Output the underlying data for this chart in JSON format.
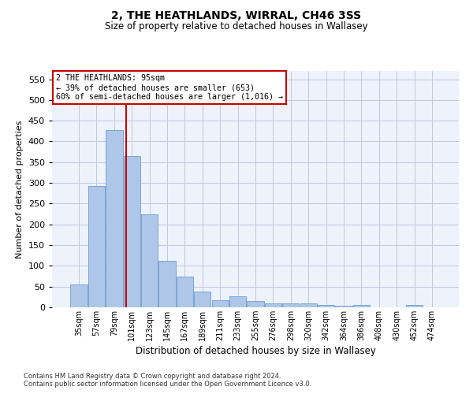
{
  "title": "2, THE HEATHLANDS, WIRRAL, CH46 3SS",
  "subtitle": "Size of property relative to detached houses in Wallasey",
  "xlabel": "Distribution of detached houses by size in Wallasey",
  "ylabel": "Number of detached properties",
  "categories": [
    "35sqm",
    "57sqm",
    "79sqm",
    "101sqm",
    "123sqm",
    "145sqm",
    "167sqm",
    "189sqm",
    "211sqm",
    "233sqm",
    "255sqm",
    "276sqm",
    "298sqm",
    "320sqm",
    "342sqm",
    "364sqm",
    "386sqm",
    "408sqm",
    "430sqm",
    "452sqm",
    "474sqm"
  ],
  "values": [
    56,
    293,
    428,
    365,
    225,
    113,
    75,
    38,
    17,
    27,
    15,
    10,
    10,
    10,
    5,
    3,
    5,
    0,
    0,
    5,
    0
  ],
  "bar_color": "#aec6e8",
  "bar_edge_color": "#6a9fd0",
  "annotation_text_line1": "2 THE HEATHLANDS: 95sqm",
  "annotation_text_line2": "← 39% of detached houses are smaller (653)",
  "annotation_text_line3": "60% of semi-detached houses are larger (1,016) →",
  "annotation_box_color": "#ffffff",
  "annotation_box_edge": "#cc0000",
  "vline_color": "#cc0000",
  "vline_x": 2.68,
  "ylim": [
    0,
    570
  ],
  "yticks": [
    0,
    50,
    100,
    150,
    200,
    250,
    300,
    350,
    400,
    450,
    500,
    550
  ],
  "footer_line1": "Contains HM Land Registry data © Crown copyright and database right 2024.",
  "footer_line2": "Contains public sector information licensed under the Open Government Licence v3.0.",
  "bg_color": "#eef2fb",
  "grid_color": "#c0c8de"
}
